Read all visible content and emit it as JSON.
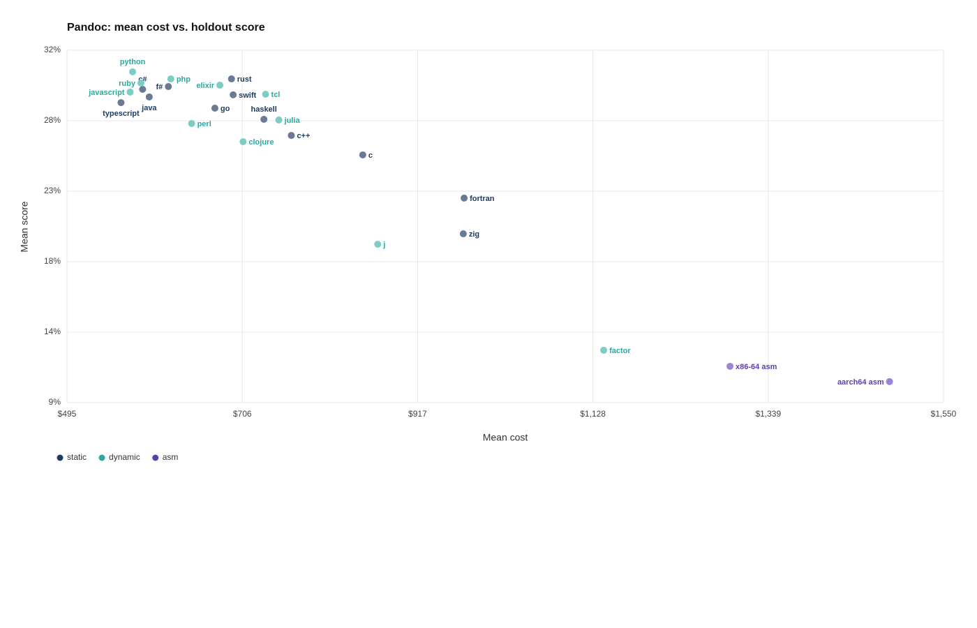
{
  "chart_data": {
    "type": "scatter",
    "title": "Pandoc: mean cost vs. holdout score",
    "x_label": "Mean cost",
    "y_label": "Mean score",
    "xlim": [
      495,
      1550
    ],
    "xticks": [
      {
        "value": 495,
        "label": "$495"
      },
      {
        "value": 706,
        "label": "$706"
      },
      {
        "value": 917,
        "label": "$917"
      },
      {
        "value": 1128,
        "label": "$1,128"
      },
      {
        "value": 1339,
        "label": "$1,339"
      },
      {
        "value": 1550,
        "label": "$1,550"
      }
    ],
    "ylim": [
      9.2,
      32.2
    ],
    "yticks": [
      {
        "value": 9.2,
        "label": "9%"
      },
      {
        "value": 13.8,
        "label": "14%"
      },
      {
        "value": 18.4,
        "label": "18%"
      },
      {
        "value": 23,
        "label": "23%"
      },
      {
        "value": 27.6,
        "label": "28%"
      },
      {
        "value": 32.2,
        "label": "32%"
      }
    ],
    "grid": true,
    "series": [
      {
        "name": "static",
        "color": "#1e3a5f",
        "labels": [
          "c#",
          "java",
          "f#",
          "typescript",
          "go",
          "rust",
          "swift",
          "haskell",
          "c++",
          "c",
          "fortran",
          "zig"
        ],
        "x": [
          586,
          594,
          617,
          560,
          673,
          693,
          695,
          732,
          765,
          851,
          973,
          972
        ],
        "y": [
          29.65,
          29.15,
          29.83,
          28.78,
          28.42,
          30.33,
          29.29,
          27.69,
          26.64,
          25.37,
          22.55,
          20.22
        ]
      },
      {
        "name": "dynamic",
        "color": "#2aa9a0",
        "labels": [
          "python",
          "ruby",
          "javascript",
          "php",
          "perl",
          "elixir",
          "clojure",
          "tcl",
          "julia",
          "j",
          "factor"
        ],
        "x": [
          574,
          584,
          571,
          620,
          645,
          679,
          707,
          734,
          750,
          869,
          1141
        ],
        "y": [
          30.79,
          30.06,
          29.47,
          30.33,
          27.42,
          29.92,
          26.23,
          29.33,
          27.65,
          19.54,
          12.62
        ]
      },
      {
        "name": "asm",
        "color": "#5b3fb0",
        "labels": [
          "x86-64 asm",
          "aarch64 asm"
        ],
        "x": [
          1293,
          1485
        ],
        "y": [
          11.57,
          10.57
        ]
      }
    ]
  }
}
